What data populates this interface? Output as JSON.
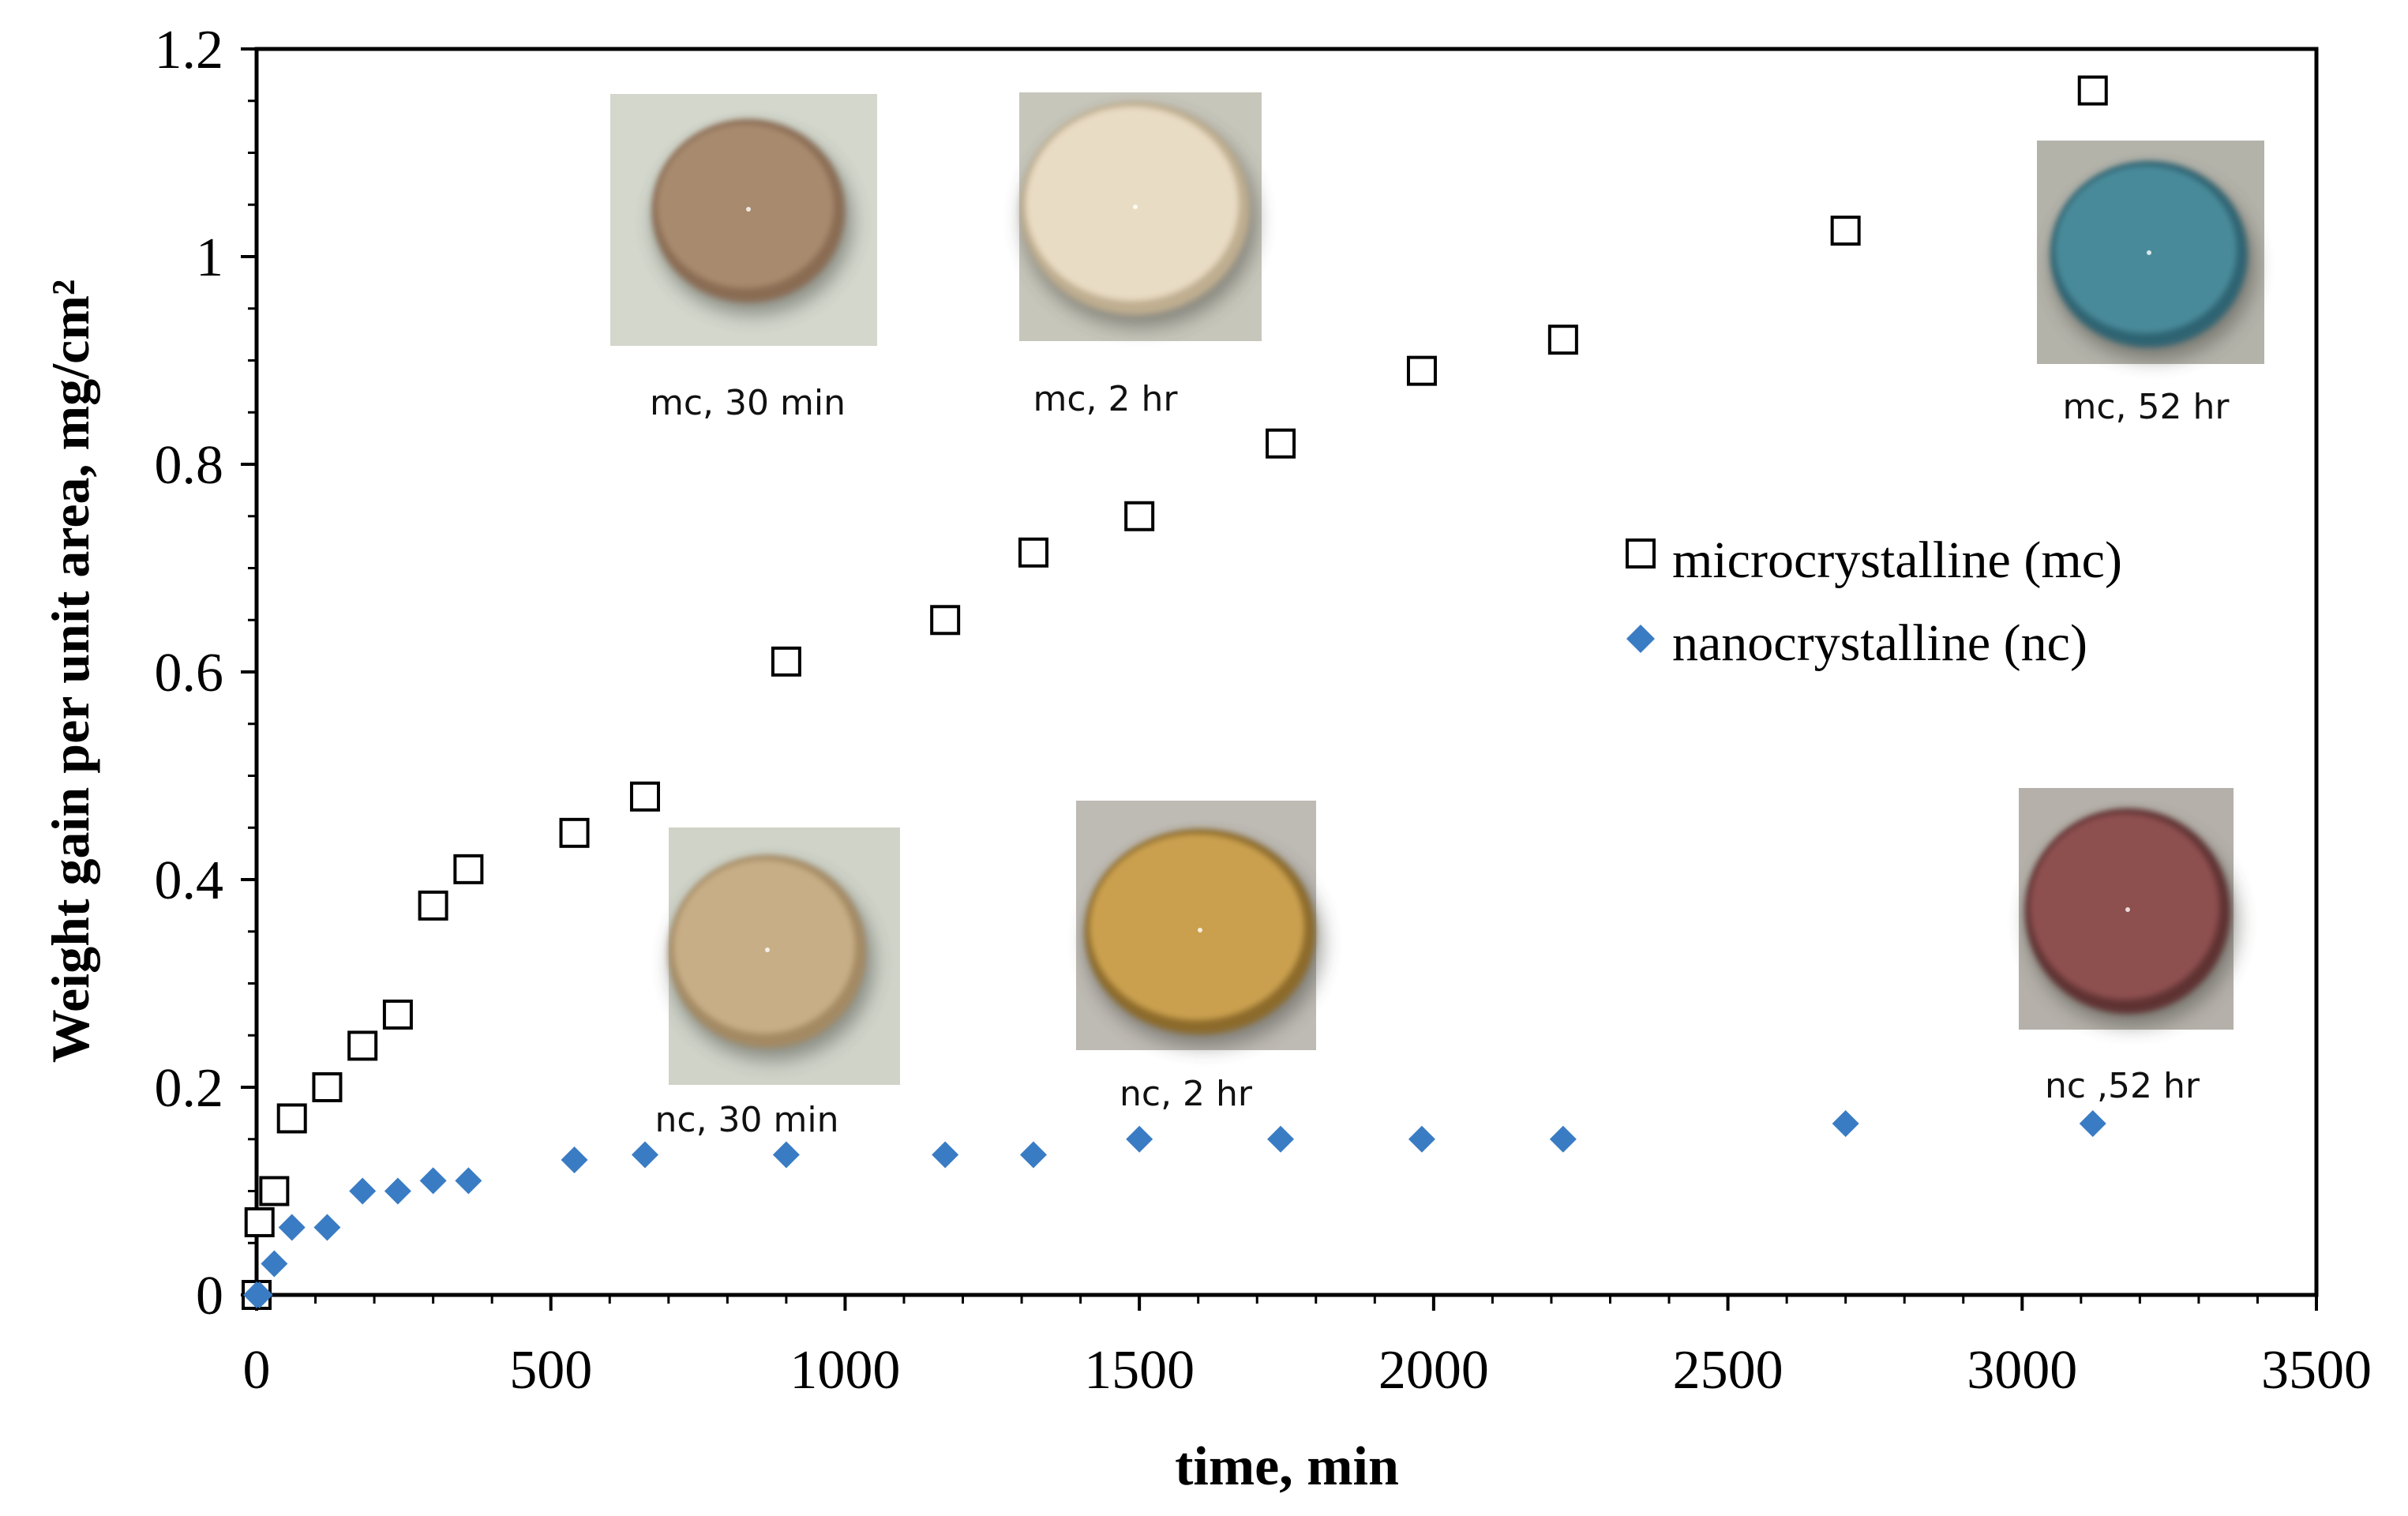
{
  "chart_data": {
    "type": "scatter",
    "title": "",
    "xlabel": "time, min",
    "ylabel": "Weight gain per unit area, mg/cm²",
    "xlim": [
      0,
      3500
    ],
    "ylim": [
      0,
      1.2
    ],
    "xticks": [
      0,
      500,
      1000,
      1500,
      2000,
      2500,
      3000,
      3500
    ],
    "yticks": [
      0,
      0.2,
      0.4,
      0.6,
      0.8,
      1,
      1.2
    ],
    "x_minor_step": 100,
    "y_minor_step": 0.05,
    "grid": false,
    "legend_position": "right-middle",
    "series": [
      {
        "name": "microcrystalline (mc)",
        "marker": "open-square",
        "color": "#000000",
        "x": [
          0,
          5,
          30,
          60,
          120,
          180,
          240,
          300,
          360,
          540,
          660,
          900,
          1170,
          1320,
          1500,
          1740,
          1980,
          2220,
          2700,
          3120
        ],
        "y": [
          0,
          0.07,
          0.1,
          0.17,
          0.2,
          0.24,
          0.27,
          0.375,
          0.41,
          0.445,
          0.48,
          0.61,
          0.65,
          0.715,
          0.75,
          0.82,
          0.89,
          0.92,
          1.025,
          1.16
        ]
      },
      {
        "name": "nanocrystalline (nc)",
        "marker": "filled-diamond",
        "color": "#3a7cc4",
        "x": [
          0,
          5,
          30,
          60,
          120,
          180,
          240,
          300,
          360,
          540,
          660,
          900,
          1170,
          1320,
          1500,
          1740,
          1980,
          2220,
          2700,
          3120
        ],
        "y": [
          0,
          0,
          0.03,
          0.065,
          0.065,
          0.1,
          0.1,
          0.11,
          0.11,
          0.13,
          0.135,
          0.135,
          0.135,
          0.135,
          0.15,
          0.15,
          0.15,
          0.15,
          0.165,
          0.165
        ]
      }
    ],
    "annotations": [
      {
        "label": "mc, 30 min",
        "color": "#a88a6e",
        "edge": "#8a6c52",
        "bg": "#d3d7cc"
      },
      {
        "label": "mc, 2 hr",
        "color": "#e9dcc4",
        "edge": "#bfae90",
        "bg": "#c7c6bb"
      },
      {
        "label": "mc, 52 hr",
        "color": "#4a8a9a",
        "edge": "#2f6472",
        "bg": "#b4b3aa"
      },
      {
        "label": "nc, 30 min",
        "color": "#c7ae86",
        "edge": "#a48a64",
        "bg": "#cfd3c8"
      },
      {
        "label": "nc, 2 hr",
        "color": "#caa050",
        "edge": "#8c6a2a",
        "bg": "#bebab4"
      },
      {
        "label": "nc ,52 hr",
        "color": "#8e5050",
        "edge": "#5e3030",
        "bg": "#b5b1aa"
      }
    ]
  }
}
